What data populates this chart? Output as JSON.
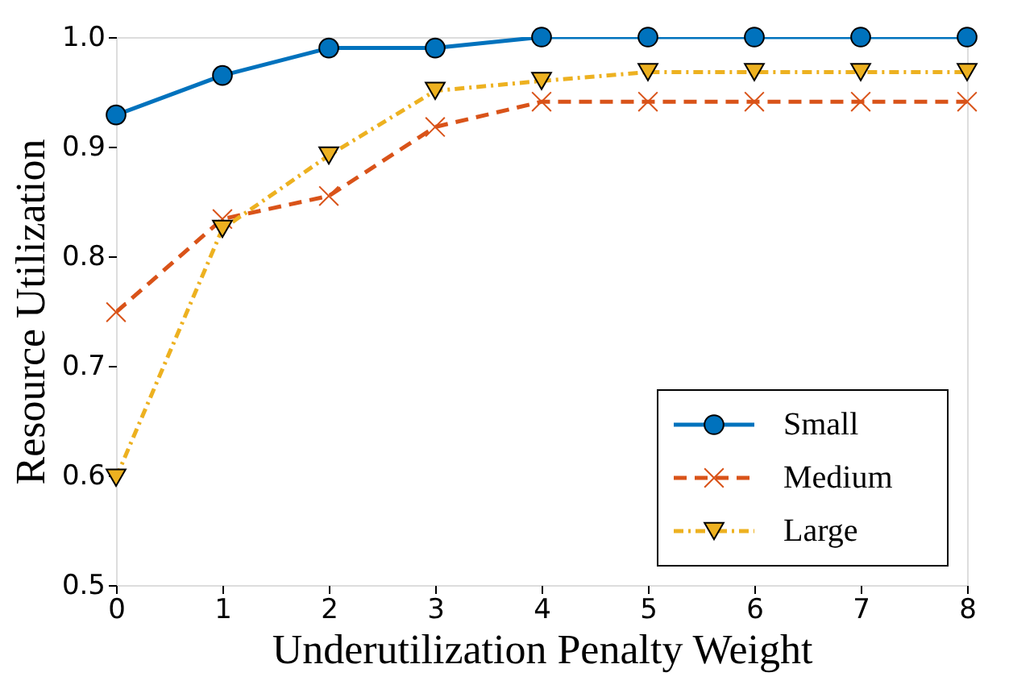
{
  "chart_data": {
    "type": "line",
    "xlabel": "Underutilization Penalty Weight",
    "ylabel": "Resource Utilization",
    "x": [
      0,
      1,
      2,
      3,
      4,
      5,
      6,
      7,
      8
    ],
    "series": [
      {
        "name": "Small",
        "color": "#0072bd",
        "marker": "circle",
        "line_style": "solid",
        "values": [
          0.929,
          0.965,
          0.99,
          0.99,
          1.0,
          1.0,
          1.0,
          1.0,
          1.0
        ]
      },
      {
        "name": "Medium",
        "color": "#d95319",
        "marker": "cross",
        "line_style": "dashed",
        "values": [
          0.749,
          0.834,
          0.855,
          0.918,
          0.941,
          0.941,
          0.941,
          0.941,
          0.941
        ]
      },
      {
        "name": "Large",
        "color": "#edb120",
        "marker": "triangle",
        "line_style": "dotted",
        "values": [
          0.598,
          0.825,
          0.892,
          0.951,
          0.96,
          0.968,
          0.968,
          0.968,
          0.968
        ]
      }
    ],
    "xlim": [
      0,
      8
    ],
    "xticks": [
      0,
      1,
      2,
      3,
      4,
      5,
      6,
      7,
      8
    ],
    "ylim": [
      0.5,
      1.0
    ],
    "yticks": [
      0.5,
      0.6,
      0.7,
      0.8,
      0.9,
      {
        "value": 1.0,
        "label": "1.0"
      }
    ],
    "grid": false,
    "legend": "bottom right"
  }
}
